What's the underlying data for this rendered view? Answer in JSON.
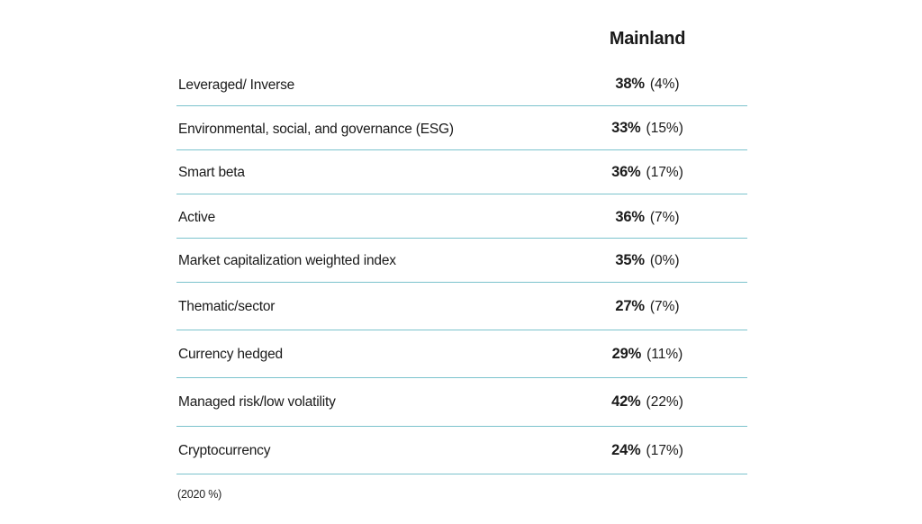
{
  "chart_data": {
    "type": "table",
    "column_header": "Mainland",
    "footnote": "(2020 %)",
    "rows": [
      {
        "category": "Leveraged/ Inverse",
        "value": "38%",
        "prior": "(4%)"
      },
      {
        "category": "Environmental, social, and governance (ESG)",
        "value": "33%",
        "prior": "(15%)"
      },
      {
        "category": "Smart beta",
        "value": "36%",
        "prior": "(17%)"
      },
      {
        "category": "Active",
        "value": "36%",
        "prior": "(7%)"
      },
      {
        "category": "Market capitalization weighted index",
        "value": "35%",
        "prior": "(0%)"
      },
      {
        "category": "Thematic/sector",
        "value": "27%",
        "prior": "(7%)"
      },
      {
        "category": "Currency hedged",
        "value": "29%",
        "prior": "(11%)"
      },
      {
        "category": "Managed risk/low volatility",
        "value": "42%",
        "prior": "(22%)"
      },
      {
        "category": "Cryptocurrency",
        "value": "24%",
        "prior": "(17%)"
      }
    ]
  },
  "colors": {
    "divider": "#7cc3cd",
    "text": "#1a1a1a"
  }
}
